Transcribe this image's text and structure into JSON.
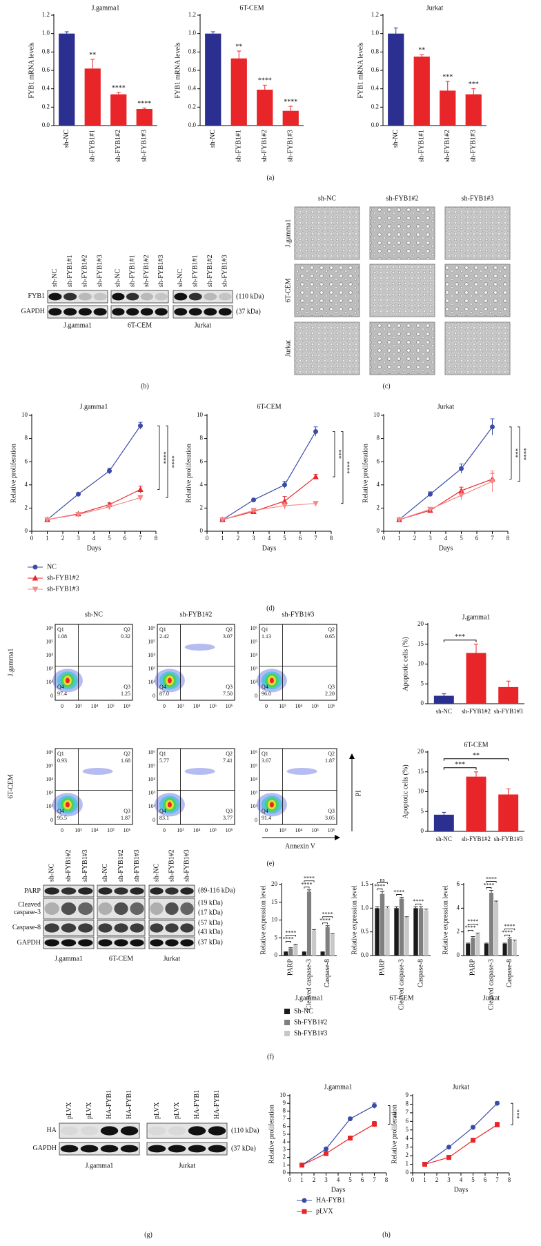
{
  "panel_labels": [
    "(a)",
    "(b)",
    "(c)",
    "(d)",
    "(e)",
    "(f)",
    "(g)",
    "(h)"
  ],
  "chart_data": [
    {
      "type": "bar",
      "title": "J.gamma1",
      "y_label": "FYB1 mRNA levels",
      "categories": [
        "sh-NC",
        "sh-FYB1#1",
        "sh-FYB1#2",
        "sh-FYB1#3"
      ],
      "values": [
        1.0,
        0.62,
        0.34,
        0.18
      ],
      "errors": [
        0.02,
        0.1,
        0.02,
        0.01
      ],
      "colors": [
        "#2b2f8f",
        "#e8262a",
        "#e8262a",
        "#e8262a"
      ],
      "significance": [
        null,
        "**",
        "****",
        "****"
      ],
      "ylim": [
        0,
        1.2
      ],
      "yticks": [
        {
          "value": 0,
          "label": "0.0"
        },
        0.2,
        0.4,
        0.6,
        0.8,
        {
          "value": 1,
          "label": "1.0"
        },
        1.2
      ]
    },
    {
      "type": "bar",
      "title": "6T-CEM",
      "y_label": "FYB1 mRNA levels",
      "categories": [
        "sh-NC",
        "sh-FYB1#1",
        "sh-FYB1#2",
        "sh-FYB1#3"
      ],
      "values": [
        1.0,
        0.73,
        0.39,
        0.16
      ],
      "errors": [
        0.02,
        0.08,
        0.05,
        0.05
      ],
      "colors": [
        "#2b2f8f",
        "#e8262a",
        "#e8262a",
        "#e8262a"
      ],
      "significance": [
        null,
        "**",
        "****",
        "****"
      ],
      "ylim": [
        0,
        1.2
      ],
      "yticks": [
        {
          "value": 0,
          "label": "0.0"
        },
        0.2,
        0.4,
        0.6,
        0.8,
        {
          "value": 1,
          "label": "1.0"
        },
        1.2
      ]
    },
    {
      "type": "bar",
      "title": "Jurkat",
      "y_label": "FYB1 mRNA levels",
      "categories": [
        "sh-NC",
        "sh-FYB1#1",
        "sh-FYB1#2",
        "sh-FYB1#3"
      ],
      "values": [
        1.0,
        0.75,
        0.38,
        0.34
      ],
      "errors": [
        0.06,
        0.02,
        0.1,
        0.06
      ],
      "colors": [
        "#2b2f8f",
        "#e8262a",
        "#e8262a",
        "#e8262a"
      ],
      "significance": [
        null,
        "**",
        "***",
        "***"
      ],
      "ylim": [
        0,
        1.2
      ],
      "yticks": [
        {
          "value": 0,
          "label": "0.0"
        },
        0.2,
        0.4,
        0.6,
        0.8,
        {
          "value": 1,
          "label": "1.0"
        },
        1.2
      ]
    },
    {
      "type": "line",
      "title": "J.gamma1",
      "x_label": "Days",
      "y_label": "Relative proliferation",
      "x": [
        1,
        3,
        5,
        7
      ],
      "xlim": [
        0,
        8
      ],
      "xticks": [
        0,
        1,
        2,
        3,
        4,
        5,
        6,
        7,
        8
      ],
      "ylim": [
        0,
        10
      ],
      "yticks": [
        0,
        2,
        4,
        6,
        8,
        10
      ],
      "series": [
        {
          "name": "NC",
          "color": "#3b4ba8",
          "marker": "circle",
          "values": [
            1,
            3.2,
            5.2,
            9.1
          ],
          "errors": [
            0.05,
            0.1,
            0.25,
            0.3
          ]
        },
        {
          "name": "sh-FYB1#2",
          "color": "#e8262a",
          "marker": "triangle",
          "values": [
            1,
            1.5,
            2.3,
            3.6
          ],
          "errors": [
            0.03,
            0.08,
            0.15,
            0.3
          ]
        },
        {
          "name": "sh-FYB1#3",
          "color": "#f58a8a",
          "marker": "triangle-down",
          "values": [
            1,
            1.45,
            2.1,
            2.9
          ],
          "errors": [
            0.03,
            0.08,
            0.12,
            0.2
          ]
        }
      ],
      "significance": [
        "****",
        "****"
      ]
    },
    {
      "type": "line",
      "title": "6T-CEM",
      "x_label": "Days",
      "y_label": "Relative proliferation",
      "x": [
        1,
        3,
        5,
        7
      ],
      "xlim": [
        0,
        8
      ],
      "xticks": [
        0,
        1,
        2,
        3,
        4,
        5,
        6,
        7,
        8
      ],
      "ylim": [
        0,
        10
      ],
      "yticks": [
        0,
        2,
        4,
        6,
        8,
        10
      ],
      "series": [
        {
          "color": "#3b4ba8",
          "marker": "circle",
          "values": [
            1,
            2.7,
            4.0,
            8.6
          ],
          "errors": [
            0.05,
            0.1,
            0.3,
            0.4
          ]
        },
        {
          "color": "#e8262a",
          "marker": "triangle",
          "values": [
            1,
            1.7,
            2.6,
            4.7
          ],
          "errors": [
            0.05,
            0.15,
            0.4,
            0.2
          ]
        },
        {
          "color": "#f58a8a",
          "marker": "triangle-down",
          "values": [
            1,
            1.8,
            2.2,
            2.4
          ],
          "errors": [
            0.05,
            0.15,
            0.3,
            0.1
          ]
        }
      ],
      "significance": [
        "***",
        "****"
      ]
    },
    {
      "type": "line",
      "title": "Jurkat",
      "x_label": "Days",
      "y_label": "Relative proliferation",
      "x": [
        1,
        3,
        5,
        7
      ],
      "xlim": [
        0,
        8
      ],
      "xticks": [
        0,
        1,
        2,
        3,
        4,
        5,
        6,
        7,
        8
      ],
      "ylim": [
        0,
        10
      ],
      "yticks": [
        0,
        2,
        4,
        6,
        8,
        10
      ],
      "series": [
        {
          "color": "#3b4ba8",
          "marker": "circle",
          "values": [
            1,
            3.2,
            5.4,
            9.0
          ],
          "errors": [
            0.05,
            0.2,
            0.4,
            0.7
          ]
        },
        {
          "color": "#e8262a",
          "marker": "triangle",
          "values": [
            1,
            1.8,
            3.5,
            4.5
          ],
          "errors": [
            0.05,
            0.1,
            0.3,
            0.5
          ]
        },
        {
          "color": "#f58a8a",
          "marker": "triangle-down",
          "values": [
            1,
            1.9,
            3.1,
            4.3
          ],
          "errors": [
            0.05,
            0.15,
            0.4,
            0.9
          ]
        }
      ],
      "significance": [
        "***",
        "****"
      ]
    },
    {
      "type": "bar",
      "title": "J.gamma1",
      "y_label": "Apoptotic cells (%)",
      "categories": [
        "sh-NC",
        "sh-FYB1#2",
        "sh-FYB1#3"
      ],
      "values": [
        2.0,
        12.8,
        4.2
      ],
      "errors": [
        0.5,
        2.2,
        1.5
      ],
      "colors": [
        "#2b2f8f",
        "#e8262a",
        "#e8262a"
      ],
      "comparisons": [
        {
          "groups": [
            0,
            1
          ],
          "label": "***"
        }
      ],
      "ylim": [
        0,
        20
      ],
      "yticks": [
        0,
        5,
        10,
        15,
        20
      ]
    },
    {
      "type": "bar",
      "title": "6T-CEM",
      "y_label": "Apoptotic cells (%)",
      "categories": [
        "sh-NC",
        "sh-FYB1#2",
        "sh-FYB1#3"
      ],
      "values": [
        4.2,
        13.8,
        9.3
      ],
      "errors": [
        0.6,
        1.2,
        1.4
      ],
      "colors": [
        "#2b2f8f",
        "#e8262a",
        "#e8262a"
      ],
      "comparisons": [
        {
          "groups": [
            0,
            1
          ],
          "label": "***"
        },
        {
          "groups": [
            0,
            2
          ],
          "label": "**"
        }
      ],
      "ylim": [
        0,
        20
      ],
      "yticks": [
        0,
        5,
        10,
        15,
        20
      ]
    },
    {
      "type": "grouped_bar",
      "title": "J.gamma1",
      "y_label": "Relative expression level",
      "categories": [
        "PARP",
        "Cleaved caspase-3",
        "Caspase-8"
      ],
      "ylim": [
        0,
        20
      ],
      "yticks": [
        0,
        5,
        10,
        15,
        20
      ],
      "series": [
        {
          "name": "Sh-NC",
          "color": "#1a1a1a",
          "values": [
            1,
            1,
            1
          ],
          "errors": [
            0.1,
            0.1,
            0.1
          ]
        },
        {
          "name": "Sh-FYB1#2",
          "color": "#7f7f7f",
          "values": [
            2.0,
            18.0,
            8.0
          ],
          "errors": [
            0.2,
            0.5,
            0.4
          ]
        },
        {
          "name": "Sh-FYB1#3",
          "color": "#c8c8c8",
          "values": [
            3.0,
            7.0,
            6.0
          ],
          "errors": [
            0.2,
            0.3,
            0.2
          ]
        }
      ],
      "significance": [
        [
          "****",
          "****"
        ],
        [
          "****",
          "****"
        ],
        [
          "****",
          "****"
        ]
      ]
    },
    {
      "type": "grouped_bar",
      "title": "6T-CEM",
      "y_label": "Relative expression level",
      "categories": [
        "PARP",
        "Cleaved caspase-3",
        "Caspase-8"
      ],
      "ylim": [
        0,
        1.5
      ],
      "yticks": [
        {
          "value": 0,
          "label": "0.0"
        },
        0.5,
        {
          "value": 1,
          "label": "1.0"
        },
        1.5
      ],
      "series": [
        {
          "color": "#1a1a1a",
          "values": [
            1,
            1,
            1
          ],
          "errors": [
            0.03,
            0.03,
            0.03
          ]
        },
        {
          "color": "#7f7f7f",
          "values": [
            1.3,
            1.2,
            1.0
          ],
          "errors": [
            0.05,
            0.03,
            0.03
          ]
        },
        {
          "color": "#c8c8c8",
          "values": [
            1.0,
            0.8,
            0.95
          ],
          "errors": [
            0.03,
            0.02,
            0.03
          ]
        }
      ],
      "significance": [
        [
          "****",
          "ns"
        ],
        [
          "****"
        ],
        [
          "****"
        ]
      ]
    },
    {
      "type": "grouped_bar",
      "title": "Jurkat",
      "y_label": "Relative expression level",
      "categories": [
        "PARP",
        "Cleaved caspase-3",
        "Caspase-8"
      ],
      "ylim": [
        0,
        6
      ],
      "yticks": [
        0,
        2,
        4,
        6
      ],
      "series": [
        {
          "color": "#1a1a1a",
          "values": [
            1,
            1,
            1
          ],
          "errors": [
            0.05,
            0.05,
            0.05
          ]
        },
        {
          "color": "#7f7f7f",
          "values": [
            1.5,
            5.3,
            1.4
          ],
          "errors": [
            0.1,
            0.2,
            0.1
          ]
        },
        {
          "color": "#c8c8c8",
          "values": [
            1.8,
            4.5,
            1.2
          ],
          "errors": [
            0.1,
            0.1,
            0.1
          ]
        }
      ],
      "significance": [
        [
          "****",
          "****"
        ],
        [
          "****",
          "****"
        ],
        [
          "****",
          "****"
        ]
      ]
    },
    {
      "type": "line",
      "title": "J.gamma1",
      "x_label": "Days",
      "y_label": "Relative proliferation",
      "x": [
        1,
        3,
        5,
        7
      ],
      "xlim": [
        0,
        8
      ],
      "xticks": [
        0,
        1,
        2,
        3,
        4,
        5,
        6,
        7,
        8
      ],
      "ylim": [
        0,
        10
      ],
      "yticks": [
        0,
        1,
        2,
        3,
        4,
        5,
        6,
        7,
        8,
        9,
        10
      ],
      "series": [
        {
          "name": "HA-FYB1",
          "color": "#3b4ba8",
          "marker": "circle",
          "values": [
            1,
            3.1,
            7.0,
            8.7
          ],
          "errors": [
            0.05,
            0.15,
            0.2,
            0.35
          ]
        },
        {
          "name": "pLVX",
          "color": "#e8262a",
          "marker": "square",
          "values": [
            1,
            2.5,
            4.5,
            6.3
          ],
          "errors": [
            0.05,
            0.15,
            0.2,
            0.35
          ]
        }
      ],
      "significance": [
        "**"
      ]
    },
    {
      "type": "line",
      "title": "Jurkat",
      "x_label": "Days",
      "y_label": "Relative proliferation",
      "x": [
        1,
        3,
        5,
        7
      ],
      "xlim": [
        0,
        8
      ],
      "xticks": [
        0,
        1,
        2,
        3,
        4,
        5,
        6,
        7,
        8
      ],
      "ylim": [
        0,
        9
      ],
      "yticks": [
        0,
        1,
        2,
        3,
        4,
        5,
        6,
        7,
        8,
        9
      ],
      "series": [
        {
          "color": "#3b4ba8",
          "marker": "circle",
          "values": [
            1,
            3.0,
            5.3,
            8.1
          ],
          "errors": [
            0.05,
            0.1,
            0.2,
            0.2
          ]
        },
        {
          "color": "#e8262a",
          "marker": "square",
          "values": [
            1,
            1.8,
            3.8,
            5.6
          ],
          "errors": [
            0.05,
            0.1,
            0.15,
            0.3
          ]
        }
      ],
      "significance": [
        "***"
      ]
    }
  ],
  "blot_b": {
    "lanes": [
      "sh-NC",
      "sh-FYB1#1",
      "sh-FYB1#2",
      "sh-FYB1#3",
      "sh-NC",
      "sh-FYB1#1",
      "sh-FYB1#2",
      "sh-FYB1#3",
      "sh-NC",
      "sh-FYB1#1",
      "sh-FYB1#2",
      "sh-FYB1#3"
    ],
    "rows": [
      "FYB1",
      "GAPDH"
    ],
    "sizes": [
      "(110 kDa)",
      "(37 kDa)"
    ],
    "groups": [
      "J.gamma1",
      "6T-CEM",
      "Jurkat"
    ]
  },
  "micrographs": {
    "columns": [
      "sh-NC",
      "sh-FYB1#2",
      "sh-FYB1#3"
    ],
    "rows": [
      "J.gamma1",
      "6T-CEM",
      "Jurkat"
    ]
  },
  "flow": {
    "columns": [
      "sh-NC",
      "sh-FYB1#2",
      "sh-FYB1#3"
    ],
    "rows": [
      "J.gamma1",
      "6T-CEM"
    ],
    "x_ticks": [
      "0",
      "10³",
      "10⁴",
      "10⁵",
      "10⁶"
    ],
    "y_ticks": [
      "0",
      "10²",
      "10³",
      "10⁴",
      "10⁵",
      "10⁶"
    ],
    "x_label": "Annexin V",
    "y_label": "PI",
    "quadrant_names": [
      "Q1",
      "Q2",
      "Q3",
      "Q4"
    ],
    "plots": [
      [
        [
          "1.08",
          "0.32",
          "1.25",
          "97.4"
        ],
        [
          "2.42",
          "3.07",
          "7.50",
          "87.0"
        ],
        [
          "1.13",
          "0.65",
          "2.20",
          "96.0"
        ]
      ],
      [
        [
          "0.93",
          "1.68",
          "1.87",
          "95.5"
        ],
        [
          "5.77",
          "7.41",
          "3.77",
          "83.1"
        ],
        [
          "3.67",
          "1.87",
          "3.05",
          "91.4"
        ]
      ]
    ]
  },
  "blot_f": {
    "lanes": [
      "sh-NC",
      "sh-FYB1#2",
      "sh-FYB1#3",
      "sh-NC",
      "sh-FYB1#2",
      "sh-FYB1#3",
      "sh-NC",
      "sh-FYB1#2",
      "sh-FYB1#3"
    ],
    "rows": [
      "PARP",
      "Cleaved caspase-3",
      "Caspase-8",
      "GAPDH"
    ],
    "sizes": [
      "(89-116 kDa)",
      "(19 kDa)",
      "(17 kDa)",
      "(57 kDa)",
      "(43 kDa)",
      "(37 kDa)"
    ],
    "groups": [
      "J.gamma1",
      "6T-CEM",
      "Jurkat"
    ]
  },
  "blot_g": {
    "lanes": [
      "pLVX",
      "pLVX",
      "HA-FYB1",
      "HA-FYB1",
      "pLVX",
      "pLVX",
      "HA-FYB1",
      "HA-FYB1"
    ],
    "rows": [
      "HA",
      "GAPDH"
    ],
    "sizes": [
      "(110 kDa)",
      "(37 kDa)"
    ],
    "groups": [
      "J.gamma1",
      "Jurkat"
    ]
  }
}
